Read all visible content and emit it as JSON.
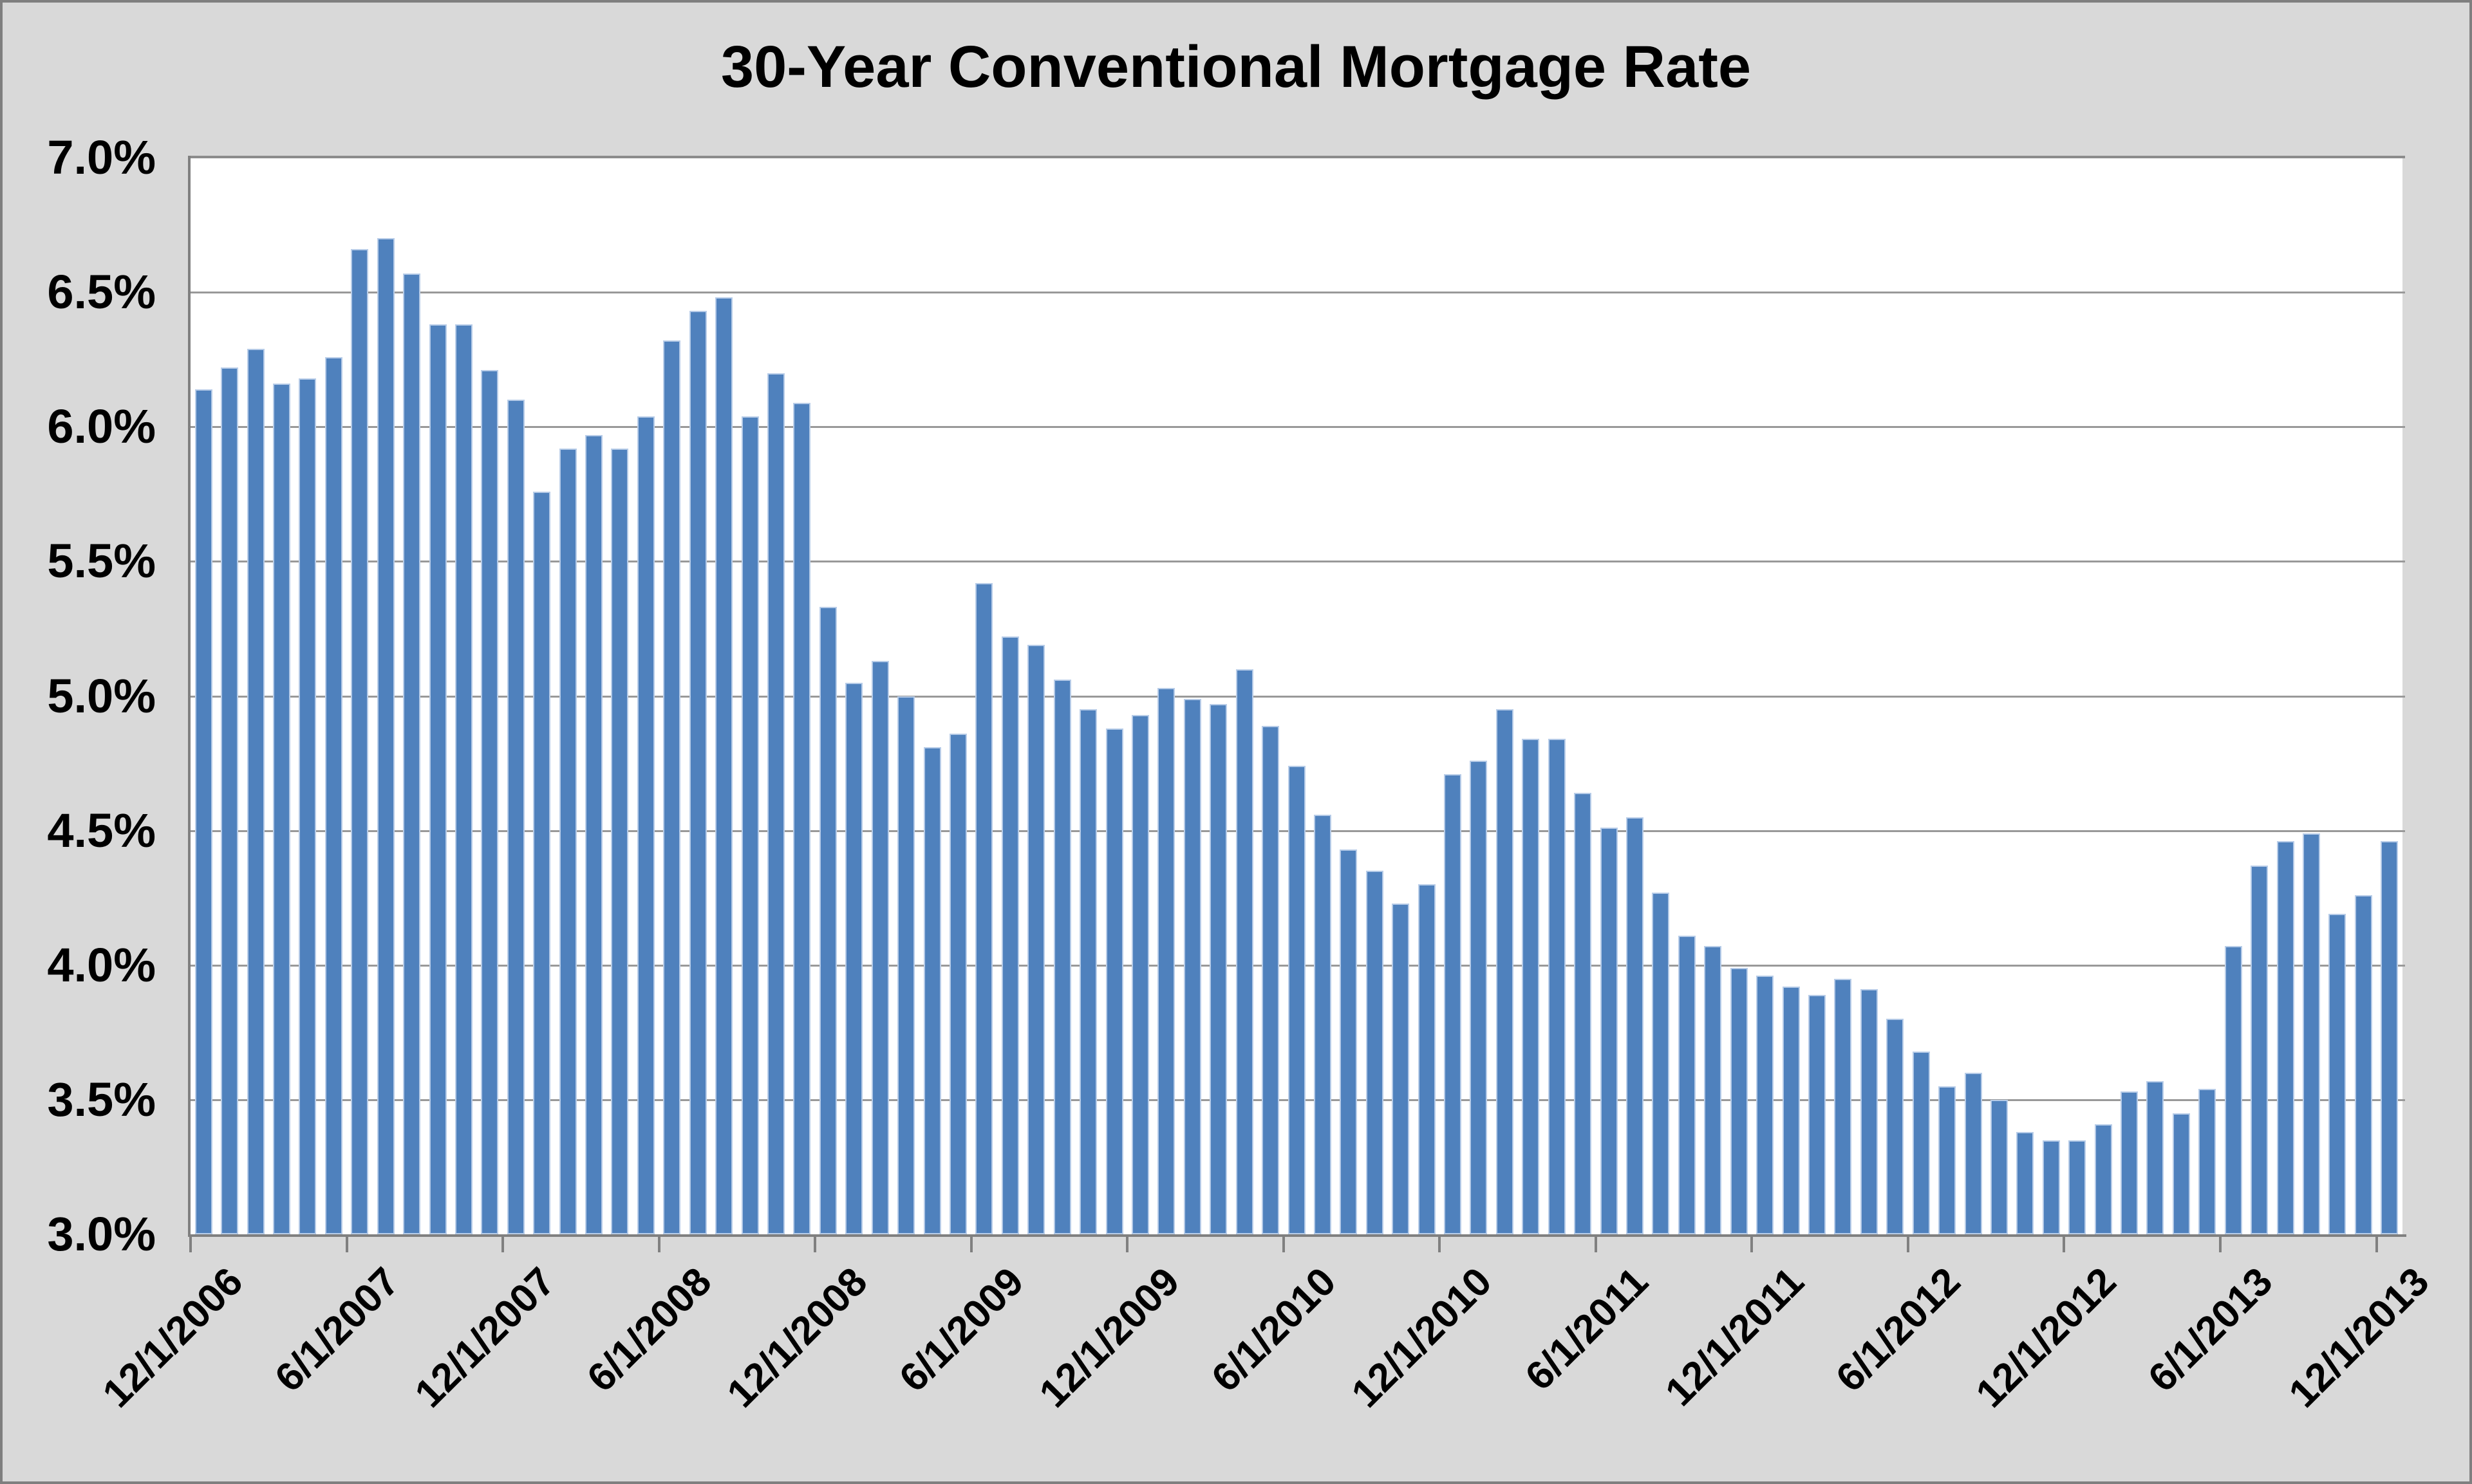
{
  "chart_data": {
    "type": "bar",
    "title": "30-Year Conventional Mortgage Rate",
    "xlabel": "",
    "ylabel": "",
    "ylim": [
      3.0,
      7.0
    ],
    "ytick_step": 0.5,
    "y_tick_labels": [
      "7.0%",
      "6.5%",
      "6.0%",
      "5.5%",
      "5.0%",
      "4.5%",
      "4.0%",
      "3.5%",
      "3.0%"
    ],
    "x_tick_labels": [
      "12/1/2006",
      "6/1/2007",
      "12/1/2007",
      "6/1/2008",
      "12/1/2008",
      "6/1/2009",
      "12/1/2009",
      "6/1/2010",
      "12/1/2010",
      "6/1/2011",
      "12/1/2011",
      "6/1/2012",
      "12/1/2012",
      "6/1/2013",
      "12/1/2013"
    ],
    "x_tick_every_n_months": 6,
    "grid": true,
    "legend": "none",
    "months": [
      "12/1/2006",
      "1/1/2007",
      "2/1/2007",
      "3/1/2007",
      "4/1/2007",
      "5/1/2007",
      "6/1/2007",
      "7/1/2007",
      "8/1/2007",
      "9/1/2007",
      "10/1/2007",
      "11/1/2007",
      "12/1/2007",
      "1/1/2008",
      "2/1/2008",
      "3/1/2008",
      "4/1/2008",
      "5/1/2008",
      "6/1/2008",
      "7/1/2008",
      "8/1/2008",
      "9/1/2008",
      "10/1/2008",
      "11/1/2008",
      "12/1/2008",
      "1/1/2009",
      "2/1/2009",
      "3/1/2009",
      "4/1/2009",
      "5/1/2009",
      "6/1/2009",
      "7/1/2009",
      "8/1/2009",
      "9/1/2009",
      "10/1/2009",
      "11/1/2009",
      "12/1/2009",
      "1/1/2010",
      "2/1/2010",
      "3/1/2010",
      "4/1/2010",
      "5/1/2010",
      "6/1/2010",
      "7/1/2010",
      "8/1/2010",
      "9/1/2010",
      "10/1/2010",
      "11/1/2010",
      "12/1/2010",
      "1/1/2011",
      "2/1/2011",
      "3/1/2011",
      "4/1/2011",
      "5/1/2011",
      "6/1/2011",
      "7/1/2011",
      "8/1/2011",
      "9/1/2011",
      "10/1/2011",
      "11/1/2011",
      "12/1/2011",
      "1/1/2012",
      "2/1/2012",
      "3/1/2012",
      "4/1/2012",
      "5/1/2012",
      "6/1/2012",
      "7/1/2012",
      "8/1/2012",
      "9/1/2012",
      "10/1/2012",
      "11/1/2012",
      "12/1/2012",
      "1/1/2013",
      "2/1/2013",
      "3/1/2013",
      "4/1/2013",
      "5/1/2013",
      "6/1/2013",
      "7/1/2013",
      "8/1/2013",
      "9/1/2013",
      "10/1/2013",
      "11/1/2013",
      "12/1/2013"
    ],
    "values": [
      6.14,
      6.22,
      6.29,
      6.16,
      6.18,
      6.26,
      6.66,
      6.7,
      6.57,
      6.38,
      6.38,
      6.21,
      6.1,
      5.76,
      5.92,
      5.97,
      5.92,
      6.04,
      6.32,
      6.43,
      6.48,
      6.04,
      6.2,
      6.09,
      5.33,
      5.05,
      5.13,
      5.0,
      4.81,
      4.86,
      5.42,
      5.22,
      5.19,
      5.06,
      4.95,
      4.88,
      4.93,
      5.03,
      4.99,
      4.97,
      5.1,
      4.89,
      4.74,
      4.56,
      4.43,
      4.35,
      4.23,
      4.3,
      4.71,
      4.76,
      4.95,
      4.84,
      4.84,
      4.64,
      4.51,
      4.55,
      4.27,
      4.11,
      4.07,
      3.99,
      3.96,
      3.92,
      3.89,
      3.95,
      3.91,
      3.8,
      3.68,
      3.55,
      3.6,
      3.5,
      3.38,
      3.35,
      3.35,
      3.41,
      3.53,
      3.57,
      3.45,
      3.54,
      4.07,
      4.37,
      4.46,
      4.49,
      4.19,
      4.26,
      4.46
    ],
    "colors": {
      "bar": "#4F81BD",
      "bar_border": "#B7CCE8",
      "background": "#D9D9D9",
      "plot_background": "#FFFFFF",
      "gridline": "#999999",
      "axis": "#808080",
      "text": "#000000"
    }
  }
}
